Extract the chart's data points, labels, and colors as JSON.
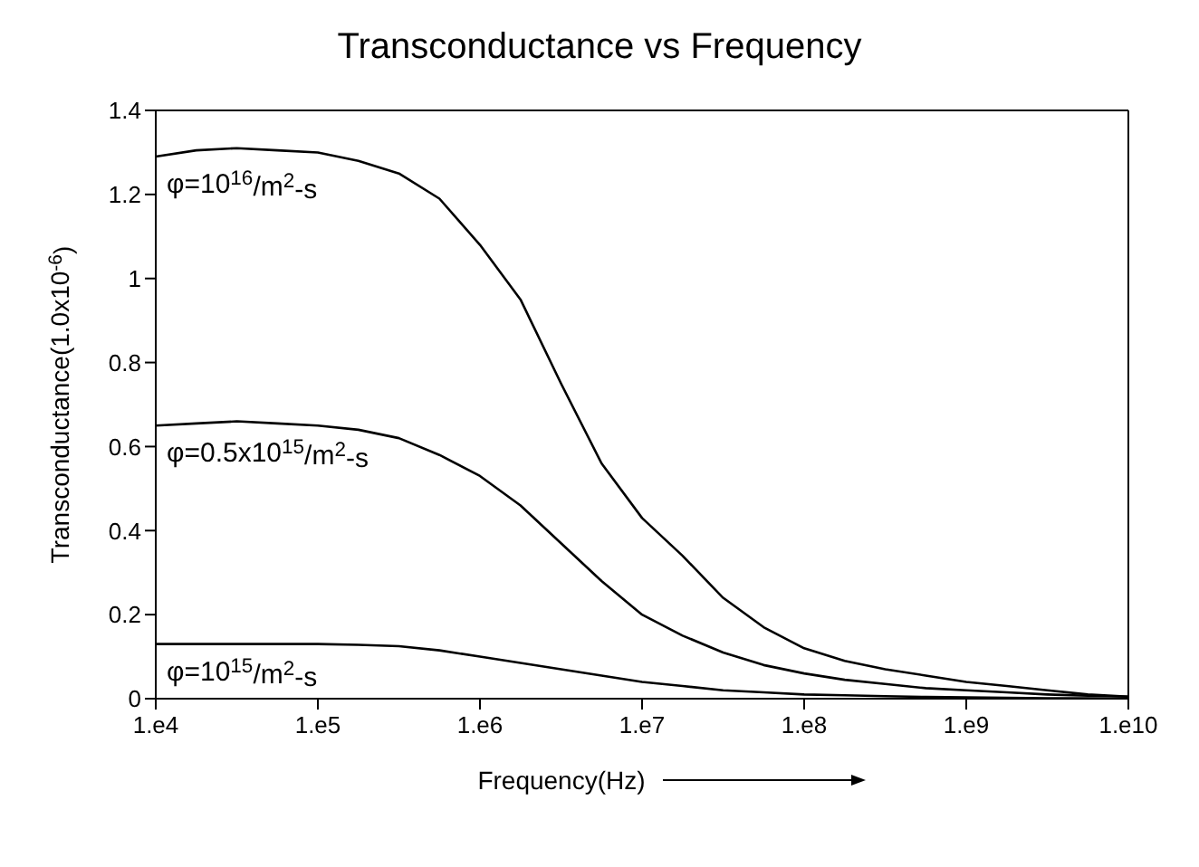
{
  "chart_data": {
    "type": "line",
    "title": "Transconductance vs Frequency",
    "xlabel": "Frequency(Hz)",
    "ylabel": "Transconductance(1.0x10$^{-6}$)",
    "ylim": [
      0,
      1.4
    ],
    "yticks": [
      0,
      0.2,
      0.4,
      0.6,
      0.8,
      1,
      1.2,
      1.4
    ],
    "grid": false,
    "legend": false,
    "marker": "none",
    "line_style": "solid",
    "categories": [
      "1.e4",
      null,
      null,
      null,
      "1.e5",
      null,
      null,
      null,
      "1.e6",
      null,
      null,
      null,
      "1.e7",
      null,
      null,
      null,
      "1.e8",
      null,
      null,
      null,
      "1.e9",
      null,
      null,
      null,
      "1.e10"
    ],
    "series": [
      {
        "name": "φ=10$^{16}$/m$^{2}$-s",
        "color": "#000000",
        "values": [
          1.29,
          1.305,
          1.31,
          1.305,
          1.3,
          1.28,
          1.25,
          1.19,
          1.08,
          0.95,
          0.75,
          0.56,
          0.43,
          0.34,
          0.24,
          0.17,
          0.12,
          0.09,
          0.07,
          0.055,
          0.04,
          0.03,
          0.02,
          0.01,
          0.005
        ]
      },
      {
        "name": "φ=0.5x10$^{15}$/m$^{2}$-s",
        "color": "#000000",
        "values": [
          0.65,
          0.655,
          0.66,
          0.655,
          0.65,
          0.64,
          0.62,
          0.58,
          0.53,
          0.46,
          0.37,
          0.28,
          0.2,
          0.15,
          0.11,
          0.08,
          0.06,
          0.045,
          0.035,
          0.025,
          0.02,
          0.015,
          0.01,
          0.007,
          0.005
        ]
      },
      {
        "name": "φ=10$^{15}$/m$^{2}$-s",
        "color": "#000000",
        "values": [
          0.13,
          0.13,
          0.13,
          0.13,
          0.13,
          0.128,
          0.125,
          0.115,
          0.1,
          0.085,
          0.07,
          0.055,
          0.04,
          0.03,
          0.02,
          0.015,
          0.01,
          0.008,
          0.006,
          0.004,
          0.003,
          0.002,
          0.001,
          0.001,
          0
        ]
      }
    ]
  }
}
